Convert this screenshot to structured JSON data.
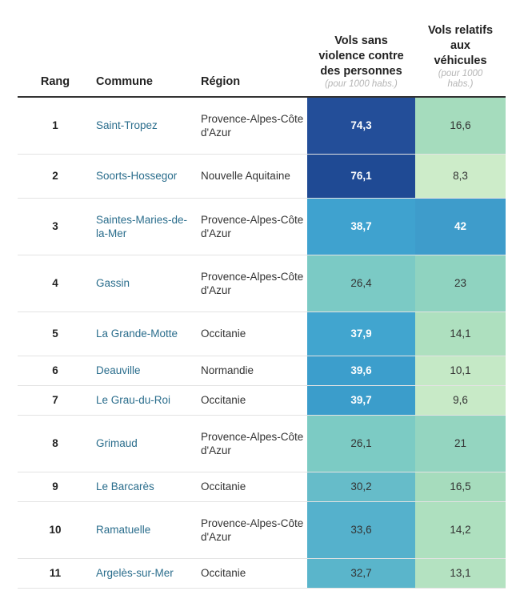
{
  "headers": {
    "rang": "Rang",
    "commune": "Commune",
    "region": "Région",
    "vols": "Vols sans violence contre des personnes",
    "vols_unit": "(pour 1000 habs.)",
    "vehicules": "Vols relatifs aux véhicules",
    "vehicules_unit": "(pour 1000 habs.)"
  },
  "rows": [
    {
      "rang": "1",
      "commune": "Saint-Tropez",
      "region": "Provence-Alpes-Côte d'Azur",
      "vols": "74,3",
      "vehicules": "16,6",
      "vols_color": "#234e99",
      "vols_text": "#ffffff",
      "vols_bold": true,
      "veh_color": "#a5dcbd",
      "veh_text": "#333333",
      "veh_bold": false
    },
    {
      "rang": "2",
      "commune": "Soorts-Hossegor",
      "region": "Nouvelle Aquitaine",
      "vols": "76,1",
      "vehicules": "8,3",
      "vols_color": "#1f4a94",
      "vols_text": "#ffffff",
      "vols_bold": true,
      "veh_color": "#cdecc9",
      "veh_text": "#333333",
      "veh_bold": false
    },
    {
      "rang": "3",
      "commune": "Saintes-Maries-de-la-Mer",
      "region": "Provence-Alpes-Côte d'Azur",
      "vols": "38,7",
      "vehicules": "42",
      "vols_color": "#3fa2cf",
      "vols_text": "#ffffff",
      "vols_bold": true,
      "veh_color": "#3e9ccb",
      "veh_text": "#ffffff",
      "veh_bold": true
    },
    {
      "rang": "4",
      "commune": "Gassin",
      "region": "Provence-Alpes-Côte d'Azur",
      "vols": "26,4",
      "vehicules": "23",
      "vols_color": "#7bcac5",
      "vols_text": "#333333",
      "vols_bold": false,
      "veh_color": "#8fd3c0",
      "veh_text": "#333333",
      "veh_bold": false
    },
    {
      "rang": "5",
      "commune": "La Grande-Motte",
      "region": "Occitanie",
      "vols": "37,9",
      "vehicules": "14,1",
      "vols_color": "#41a5cf",
      "vols_text": "#ffffff",
      "vols_bold": true,
      "veh_color": "#aee0bf",
      "veh_text": "#333333",
      "veh_bold": false
    },
    {
      "rang": "6",
      "commune": "Deauville",
      "region": "Normandie",
      "vols": "39,6",
      "vehicules": "10,1",
      "vols_color": "#3c9ecc",
      "vols_text": "#ffffff",
      "vols_bold": true,
      "veh_color": "#c5e9c6",
      "veh_text": "#333333",
      "veh_bold": false
    },
    {
      "rang": "7",
      "commune": "Le Grau-du-Roi",
      "region": "Occitanie",
      "vols": "39,7",
      "vehicules": "9,6",
      "vols_color": "#3b9dcb",
      "vols_text": "#ffffff",
      "vols_bold": true,
      "veh_color": "#c8eac7",
      "veh_text": "#333333",
      "veh_bold": false
    },
    {
      "rang": "8",
      "commune": "Grimaud",
      "region": "Provence-Alpes-Côte d'Azur",
      "vols": "26,1",
      "vehicules": "21",
      "vols_color": "#7ccbc4",
      "vols_text": "#333333",
      "vols_bold": false,
      "veh_color": "#94d5c0",
      "veh_text": "#333333",
      "veh_bold": false
    },
    {
      "rang": "9",
      "commune": "Le Barcarès",
      "region": "Occitanie",
      "vols": "30,2",
      "vehicules": "16,5",
      "vols_color": "#66bcc9",
      "vols_text": "#333333",
      "vols_bold": false,
      "veh_color": "#a6dcbd",
      "veh_text": "#333333",
      "veh_bold": false
    },
    {
      "rang": "10",
      "commune": "Ramatuelle",
      "region": "Provence-Alpes-Côte d'Azur",
      "vols": "33,6",
      "vehicules": "14,2",
      "vols_color": "#55b1cc",
      "vols_text": "#333333",
      "vols_bold": false,
      "veh_color": "#aee0bf",
      "veh_text": "#333333",
      "veh_bold": false
    },
    {
      "rang": "11",
      "commune": "Argelès-sur-Mer",
      "region": "Occitanie",
      "vols": "32,7",
      "vehicules": "13,1",
      "vols_color": "#5ab5cb",
      "vols_text": "#333333",
      "vols_bold": false,
      "veh_color": "#b4e2c1",
      "veh_text": "#333333",
      "veh_bold": false
    }
  ]
}
